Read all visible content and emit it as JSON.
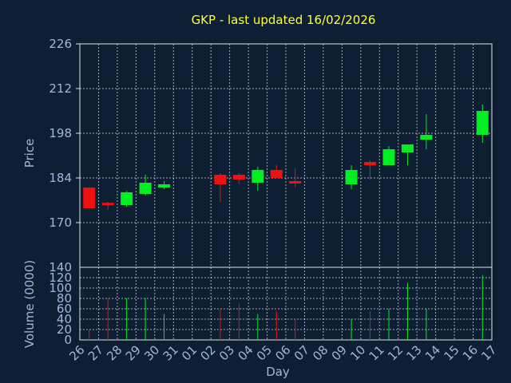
{
  "chart_data": {
    "type": "candlestick",
    "title": "GKP - last updated 16/02/2026",
    "colors": {
      "background": "#0f1f33",
      "title": "#ffff33",
      "text": "#9fb8d8",
      "up": "#00ee22",
      "down": "#ee1111",
      "grid": "#dfe6ef"
    },
    "x_ticks": [
      "26",
      "27",
      "28",
      "29",
      "30",
      "31",
      "01",
      "02",
      "03",
      "04",
      "05",
      "06",
      "07",
      "08",
      "09",
      "10",
      "11",
      "12",
      "13",
      "14",
      "15",
      "16",
      "17"
    ],
    "xlabel": "Day",
    "price_panel": {
      "ylabel": "Price",
      "yticks": [
        226,
        212,
        198,
        184,
        170
      ],
      "ylim": [
        156,
        226
      ],
      "grid": true
    },
    "volume_panel": {
      "ylabel": "Volume (0000)",
      "yticks": [
        140,
        120,
        100,
        80,
        60,
        40,
        20,
        0
      ],
      "ylim": [
        0,
        140
      ],
      "grid": true
    },
    "candles": [
      {
        "x": 0,
        "open": 181,
        "close": 174.5,
        "high": 181,
        "low": 174.5,
        "volume": 20
      },
      {
        "x": 1,
        "open": 176.2,
        "close": 175.8,
        "high": 176.5,
        "low": 174.0,
        "volume": 80
      },
      {
        "x": 2,
        "open": 175.5,
        "close": 179.5,
        "high": 180.0,
        "low": 175.0,
        "volume": 80
      },
      {
        "x": 3,
        "open": 179.0,
        "close": 182.5,
        "high": 185.0,
        "low": 178.5,
        "volume": 80
      },
      {
        "x": 4,
        "open": 181.0,
        "close": 182.0,
        "high": 183.0,
        "low": 180.5,
        "volume": 50
      },
      {
        "x": 7,
        "open": 185.0,
        "close": 182.0,
        "high": 185.5,
        "low": 176.5,
        "volume": 60
      },
      {
        "x": 8,
        "open": 185.0,
        "close": 183.5,
        "high": 185.5,
        "low": 182.0,
        "volume": 70
      },
      {
        "x": 9,
        "open": 182.5,
        "close": 186.5,
        "high": 187.5,
        "low": 180.0,
        "volume": 50
      },
      {
        "x": 10,
        "open": 186.5,
        "close": 184.0,
        "high": 188.0,
        "low": 184.0,
        "volume": 55
      },
      {
        "x": 11,
        "open": 183.0,
        "close": 182.5,
        "high": 187.0,
        "low": 181.0,
        "volume": 40
      },
      {
        "x": 14,
        "open": 182.0,
        "close": 186.5,
        "high": 188.0,
        "low": 180.5,
        "volume": 40
      },
      {
        "x": 15,
        "open": 189.0,
        "close": 188.0,
        "high": 189.5,
        "low": 183.5,
        "volume": 55
      },
      {
        "x": 16,
        "open": 188.0,
        "close": 193.0,
        "high": 194.0,
        "low": 188.0,
        "volume": 60
      },
      {
        "x": 17,
        "open": 192.0,
        "close": 194.5,
        "high": 194.5,
        "low": 188.0,
        "volume": 110
      },
      {
        "x": 18,
        "open": 196.0,
        "close": 197.5,
        "high": 204.0,
        "low": 193.0,
        "volume": 60
      },
      {
        "x": 21,
        "open": 197.5,
        "close": 205.0,
        "high": 207.0,
        "low": 195.0,
        "volume": 125
      }
    ]
  }
}
